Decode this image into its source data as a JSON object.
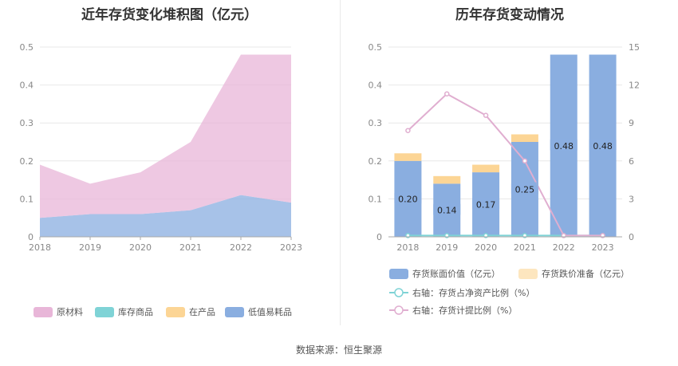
{
  "source": "数据来源：恒生聚源",
  "chart_data": [
    {
      "type": "area",
      "stacked": true,
      "title": "近年存货变化堆积图（亿元）",
      "categories": [
        "2018",
        "2019",
        "2020",
        "2021",
        "2022",
        "2023"
      ],
      "ylim": [
        0,
        0.5
      ],
      "yticks": [
        "0",
        "0.1",
        "0.2",
        "0.3",
        "0.4",
        "0.5"
      ],
      "grid": true,
      "legend_position": "bottom",
      "series": [
        {
          "name": "原材料",
          "color": "#e8b6d8",
          "values": [
            0.14,
            0.08,
            0.11,
            0.18,
            0.37,
            0.39
          ]
        },
        {
          "name": "库存商品",
          "color": "#7fd3d6",
          "values": [
            0,
            0,
            0,
            0,
            0,
            0
          ]
        },
        {
          "name": "在产品",
          "color": "#fcd595",
          "values": [
            0,
            0,
            0,
            0,
            0,
            0
          ]
        },
        {
          "name": "低值易耗品",
          "color": "#8aaee0",
          "values": [
            0.05,
            0.06,
            0.06,
            0.07,
            0.11,
            0.09
          ]
        }
      ]
    },
    {
      "type": "bar",
      "title": "历年存货变动情况",
      "categories": [
        "2018",
        "2019",
        "2020",
        "2021",
        "2022",
        "2023"
      ],
      "ylim": [
        0,
        0.5
      ],
      "yticks": [
        "0",
        "0.1",
        "0.2",
        "0.3",
        "0.4",
        "0.5"
      ],
      "y2lim": [
        0,
        15
      ],
      "y2ticks": [
        "0",
        "3",
        "6",
        "9",
        "12",
        "15"
      ],
      "grid": true,
      "legend_position": "bottom",
      "bars": [
        {
          "name": "存货账面价值（亿元）",
          "color": "#8aaee0",
          "values": [
            0.2,
            0.14,
            0.17,
            0.25,
            0.48,
            0.48
          ],
          "labels": [
            "0.20",
            "0.14",
            "0.17",
            "0.25",
            "0.48",
            "0.48"
          ]
        },
        {
          "name": "存货跌价准备（亿元）",
          "color": "#fcd595",
          "values": [
            0.02,
            0.02,
            0.02,
            0.02,
            0,
            0
          ]
        }
      ],
      "lines": [
        {
          "name": "右轴：存货占净资产比例（%）",
          "color": "#7fd3d6",
          "axis": "right",
          "values": [
            0.1,
            0.1,
            0.1,
            0.1,
            0.1,
            0.1
          ]
        },
        {
          "name": "右轴：存货计提比例（%）",
          "color": "#e0aed0",
          "axis": "right",
          "values": [
            8.4,
            11.3,
            9.6,
            6.0,
            0.1,
            0.1
          ]
        }
      ]
    }
  ]
}
